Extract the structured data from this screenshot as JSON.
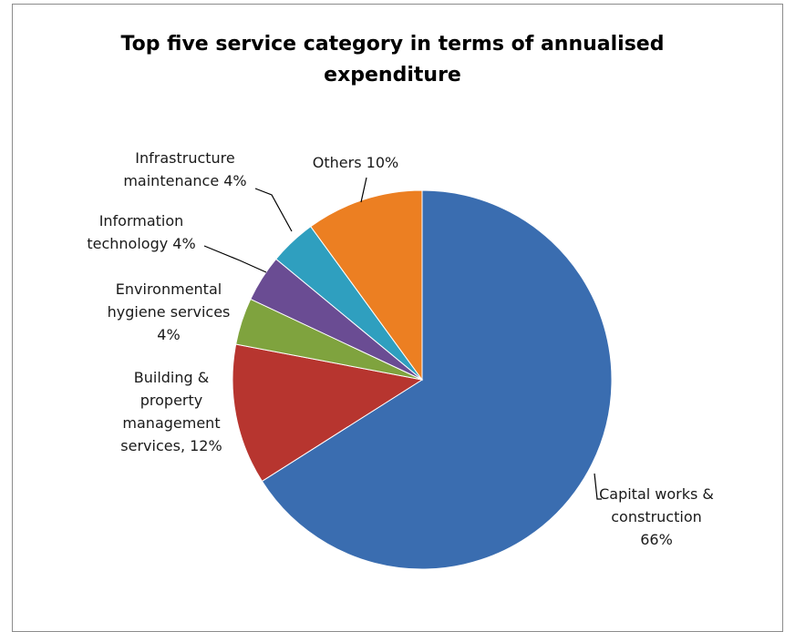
{
  "chart_data": {
    "type": "pie",
    "title_lines": [
      "Top five service category in terms of annualised",
      "expenditure"
    ],
    "slices": [
      {
        "label_lines": [
          "Capital works &",
          "construction",
          "66%"
        ],
        "value": 66,
        "color": "#3a6db0"
      },
      {
        "label_lines": [
          "Building &",
          "property",
          "management",
          "services, 12%"
        ],
        "value": 12,
        "color": "#b7352f"
      },
      {
        "label_lines": [
          "Environmental",
          "hygiene services",
          "4%"
        ],
        "value": 4,
        "color": "#7fa33e"
      },
      {
        "label_lines": [
          "Information",
          "technology 4%"
        ],
        "value": 4,
        "color": "#6a4c93"
      },
      {
        "label_lines": [
          "Infrastructure",
          "maintenance 4%"
        ],
        "value": 4,
        "color": "#2f9fbf"
      },
      {
        "label_lines": [
          "Others 10%"
        ],
        "value": 10,
        "color": "#ec7f22"
      }
    ]
  }
}
